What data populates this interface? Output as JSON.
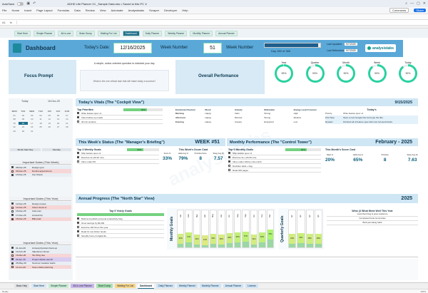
{
  "titlebar": {
    "autosave": "AutoSave",
    "file_title": "ADHD Life Planner V1 _Sample Data.xlsx • Saved to this PC ∨"
  },
  "menu": {
    "items": [
      "File",
      "Home",
      "Insert",
      "Page Layout",
      "Formulas",
      "Data",
      "Review",
      "View",
      "Automate",
      "Analysistabs",
      "Scraper",
      "Developer",
      "Help"
    ],
    "comments": "Comments",
    "share": "Share"
  },
  "formulabar": {
    "cell_ref": "A1",
    "fx": "fx"
  },
  "nav": {
    "buttons": [
      "Start Here",
      "Simple Planner",
      "All-in-one",
      "Brain Dump",
      "Waiting For List",
      "Dashboard",
      "Daily Planner",
      "Weekly Planner",
      "Monthly Planner",
      "Annual Planner"
    ],
    "active_index": 5
  },
  "header": {
    "title": "Dashboard",
    "todays_date_label": "Today's Date:",
    "todays_date": "12/16/2025",
    "week_number_label": "Week Number",
    "week_number": "51",
    "week_number_label2": "Week Number",
    "progress_label": "Day 350 of 365",
    "progress_fraction": 0.959,
    "last_updated_label": "Last Updated",
    "last_updated": "9/7/2025",
    "last_refreshed_label": "Last Refreshed",
    "last_refreshed": "9/7/2025",
    "brand": "analysistabs"
  },
  "focus": {
    "title": "Focus Prompt",
    "question": "A simple, action-oriented question to kickstart your day.",
    "answer": "What is the one critical task that will make today a success?"
  },
  "performance": {
    "title": "Overall Perfomance",
    "rings": [
      {
        "label": "Year",
        "value": "99%",
        "pct": 99
      },
      {
        "label": "Quarter",
        "value": "90%",
        "pct": 90
      },
      {
        "label": "Month",
        "value": "90%",
        "pct": 90
      },
      {
        "label": "Week",
        "value": "90%",
        "pct": 90
      },
      {
        "label": "Today",
        "value": "90%",
        "pct": 90
      }
    ]
  },
  "calendar": {
    "today_label": "Today",
    "today_date": "16-Dec-25",
    "days": [
      "MON",
      "TUE",
      "WED",
      "THU",
      "FRI",
      "SAT",
      "SUN"
    ],
    "weeks": [
      [
        "01",
        "02",
        "03",
        "04",
        "05",
        "06",
        "07"
      ],
      [
        "08",
        "09",
        "10",
        "11",
        "12",
        "13",
        "14"
      ],
      [
        "15",
        "16",
        "17",
        "18",
        "19",
        "20",
        "21"
      ],
      [
        "22",
        "23",
        "24",
        "25",
        "26",
        "27",
        "28"
      ],
      [
        "29",
        "30",
        "31",
        "",
        "",
        "",
        ""
      ]
    ],
    "foot_left": "Month Start Day",
    "foot_right": "Monday"
  },
  "important_week": {
    "title": "Important Dates (This Week)",
    "items": [
      {
        "date": "08-Dec-25",
        "text": "Design sync",
        "done": true
      },
      {
        "date": "09-Dec-25",
        "text": "Dentist appointment",
        "done": false
      },
      {
        "date": "10-Dec-25",
        "text": "Car Check",
        "done": true
      }
    ]
  },
  "important_year": {
    "title": "Important Dates (This Year)",
    "items": [
      {
        "date": "12-Dec-25",
        "text": "Design review",
        "done": true
      },
      {
        "date": "14-Dec-25",
        "text": "Client check-in",
        "done": false
      },
      {
        "date": "15-Dec-25",
        "text": "Call mom",
        "done": false
      },
      {
        "date": "17-Dec-25",
        "text": "Annual trip",
        "done": true
      },
      {
        "date": "18-Dec-25",
        "text": "Bills paid",
        "done": true
      }
    ]
  },
  "important_year2": {
    "title": "Important Dates (This Year)",
    "items": [
      {
        "date": "01-Jan-26",
        "text": "Annual physical check-up",
        "done": true
      },
      {
        "date": "14-Feb-26",
        "text": "Valentine's dinner",
        "done": true
      },
      {
        "date": "15-Mar-26",
        "text": "Tax filing due",
        "done": false
      },
      {
        "date": "20-Apr-26",
        "text": "Project Alpha Launch",
        "done": true
      },
      {
        "date": "25-May-26",
        "text": "Summer vacation starts",
        "done": true
      },
      {
        "date": "10-Jun-26",
        "text": "Team offsite planning",
        "done": false
      }
    ]
  },
  "vitals": {
    "title": "Today's Vitals (The \"Cockpit View\")",
    "date": "9/15/2025",
    "priorities_title": "Top Priorities",
    "priorities_pct": "60%",
    "priorities_fraction": 0.6,
    "priorities": [
      {
        "text": "Write feature spec v1",
        "done": true
      },
      {
        "text": "Client follow-up emails",
        "done": true
      },
      {
        "text": "30-min workout",
        "done": false
      }
    ],
    "cols": [
      "Emotional Check-In",
      "Mood",
      "Anxiety",
      "Motivation",
      "Energy Level Forecast"
    ],
    "rows": [
      [
        "Morning",
        "Happy",
        "Calm",
        "Strong",
        "High"
      ],
      [
        "Afternoon",
        "Happy",
        "Worried",
        "Strong",
        "Medium"
      ],
      [
        "Evening",
        "Happy",
        "Uneasy",
        "Energized",
        "Low"
      ]
    ],
    "todays_title": "Today's",
    "todays_rows": [
      {
        "label": "Priority",
        "text": "Write feature spec v1"
      },
      {
        "label": "First Step",
        "text": "Open a new Google Doc and type the title."
      },
      {
        "label": "Reward",
        "text": "Finished all of feature spec after two focused blocks."
      }
    ]
  },
  "week": {
    "title": "This Week's Status (The \"Manager's Briefing\")",
    "badge": "WEEK #51",
    "goals_title": "Top 3 Weekly Goals",
    "goals_pct": "50%",
    "goals_fraction": 0.5,
    "goals": [
      {
        "text": "Ship feature spec v1",
        "done": true
      },
      {
        "text": "Exercise 4x (20-30 min)",
        "done": true
      },
      {
        "text": "Inbox under 50",
        "done": false
      }
    ],
    "score_title": "This Week's Score Card",
    "score_labels": [
      "Score %",
      "Habit Avg %",
      "Priorities Done",
      "Sleep Avg (h)"
    ],
    "score_values": [
      "33%",
      "79%",
      "8",
      "7.57"
    ]
  },
  "month": {
    "title": "Monthly Performance (The \"Control Tower\")",
    "badge": "February - 2025",
    "goals_title": "Top 5 Monthly Goals",
    "goals_pct": "60%",
    "goals_fraction": 0.6,
    "goals": [
      {
        "text": "Ship feature spec v1",
        "done": true
      },
      {
        "text": "Exercise 3x+ (20-30 min)",
        "done": true
      },
      {
        "text": "Inbox under 100 by mid-month",
        "done": true
      },
      {
        "text": "Declutter desk + bag",
        "done": false
      },
      {
        "text": "Read 200 pages",
        "done": false
      }
    ],
    "score_title": "This Month's Score Card",
    "score_labels": [
      "Ratio %",
      "Habit Avg %",
      "Priorities",
      "Sleep Avg (h)"
    ],
    "score_values": [
      "20%",
      "65%",
      "8",
      "7.63"
    ]
  },
  "annual": {
    "title": "Annual Progress (The \"North Star\" View)",
    "badge": "2025",
    "goals_title": "Top 5 Yearly Goals",
    "goals": [
      {
        "text": "Build and publish personal productivity blog",
        "done": true
      },
      {
        "text": "Grow savings by $6,000",
        "done": true
      },
      {
        "text": "Exercise 100 times this year",
        "done": false
      },
      {
        "text": "Read 12 non-fiction books",
        "done": true
      },
      {
        "text": "Simplify home & digital life",
        "done": false
      }
    ],
    "months_label": "Monthly Goals",
    "months": [
      "Jan",
      "Feb",
      "Mar",
      "Apr",
      "May",
      "Jun",
      "Jul",
      "Aug",
      "Sep",
      "Oct",
      "Nov",
      "Dec"
    ],
    "month_pcts": [
      "33%",
      "47%",
      "32%",
      "21%",
      "33%",
      "28%",
      "40%",
      "50%",
      "57%",
      "31%",
      "53%",
      "76%"
    ],
    "month_fill": [
      0.33,
      0.47,
      0.32,
      0.21,
      0.33,
      0.28,
      0.4,
      0.5,
      0.57,
      0.31,
      0.53,
      0.76
    ],
    "quarters_label": "Quarterly Goals",
    "quarters": [
      "Q1",
      "Q2",
      "Q3",
      "Q4"
    ],
    "quarter_pcts": [
      "34%",
      "44%",
      "38%",
      "38%"
    ],
    "quarter_fill": [
      0.34,
      0.44,
      0.38,
      0.38
    ],
    "wins_title": "Wins (3 What Went Well This Year",
    "wins": [
      "Launched blog & grew audience",
      "Completed book summaries",
      "Built journaling habit"
    ]
  },
  "notes": {
    "title": "Important Notes"
  },
  "tabs": {
    "items": [
      "Bass Help",
      "Start Here",
      "Simple Planner",
      "All-In-one Planner",
      "Brain Dump",
      "Waiting For List",
      "Dashboard",
      "Daily Planner",
      "Weekly Planner",
      "Monthly Planner",
      "Annual Planner",
      "License"
    ],
    "colors": [
      "#e3e3e3",
      "#d8e8f5",
      "#c8ebd2",
      "#c9b8e8",
      "#a8e0b0",
      "#f6d48a",
      "#ffffff",
      "#cfe5f6",
      "#cfe5f6",
      "#cfe5f6",
      "#cfe5f6",
      "#cfe5f6"
    ]
  },
  "status": {
    "left": "Ready",
    "zoom": "100%"
  }
}
